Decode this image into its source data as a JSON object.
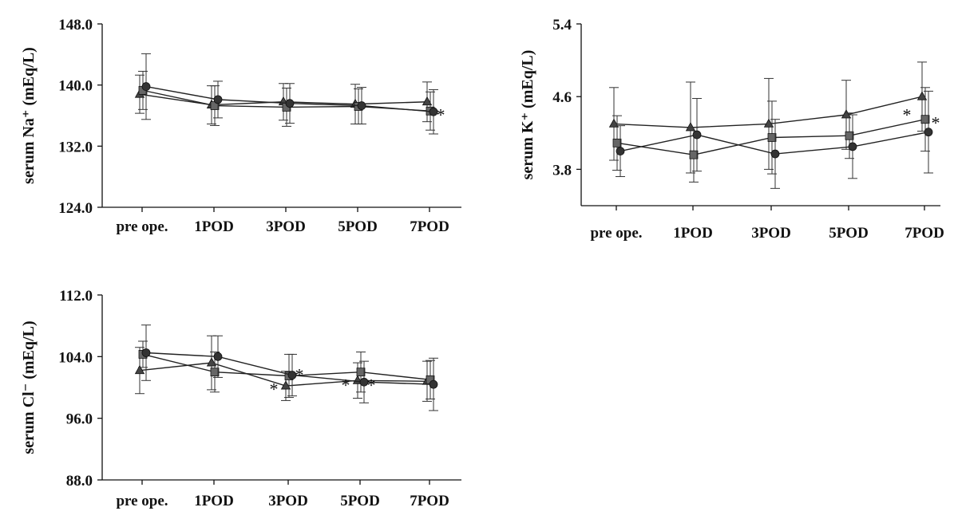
{
  "chart_data": [
    {
      "type": "line",
      "ylabel": "serum Na⁺ (mEq/L)",
      "categories": [
        "pre ope.",
        "1POD",
        "3POD",
        "5POD",
        "7POD"
      ],
      "ylim": [
        124.0,
        148.0
      ],
      "yticks": [
        "124.0",
        "132.0",
        "140.0",
        "148.0"
      ],
      "series": [
        {
          "marker": "triangle",
          "values": [
            138.8,
            137.4,
            137.8,
            137.5,
            137.8
          ],
          "err": [
            2.5,
            2.5,
            2.4,
            2.6,
            2.6
          ]
        },
        {
          "marker": "square",
          "values": [
            139.3,
            137.3,
            137.1,
            137.2,
            136.6
          ],
          "err": [
            2.5,
            2.6,
            2.5,
            2.3,
            2.5
          ]
        },
        {
          "marker": "circle",
          "values": [
            139.8,
            138.1,
            137.6,
            137.3,
            136.5
          ],
          "err": [
            4.3,
            2.4,
            2.6,
            2.4,
            2.9
          ]
        }
      ],
      "annotations": [
        {
          "category": "7POD",
          "text": "*"
        }
      ]
    },
    {
      "type": "line",
      "ylabel": "serum K⁺ (mEq/L)",
      "categories": [
        "pre ope.",
        "1POD",
        "3POD",
        "5POD",
        "7POD"
      ],
      "ylim": [
        3.4,
        5.4
      ],
      "yticks": [
        "3.8",
        "4.6",
        "5.4"
      ],
      "series": [
        {
          "marker": "triangle",
          "values": [
            4.3,
            4.26,
            4.3,
            4.4,
            4.6
          ],
          "err": [
            0.4,
            0.5,
            0.5,
            0.38,
            0.38
          ]
        },
        {
          "marker": "square",
          "values": [
            4.09,
            3.96,
            4.15,
            4.17,
            4.35
          ],
          "err": [
            0.3,
            0.3,
            0.4,
            0.25,
            0.35
          ]
        },
        {
          "marker": "circle",
          "values": [
            4.0,
            4.18,
            3.97,
            4.05,
            4.21
          ],
          "err": [
            0.28,
            0.4,
            0.38,
            0.35,
            0.45
          ]
        }
      ],
      "annotations": [
        {
          "category": "7POD",
          "text": "*"
        },
        {
          "category": "7POD",
          "text": "*"
        }
      ]
    },
    {
      "type": "line",
      "ylabel": "serum Cl⁻ (mEq/L)",
      "categories": [
        "pre ope.",
        "1POD",
        "3POD",
        "5POD",
        "7POD"
      ],
      "ylim": [
        88.0,
        112.0
      ],
      "yticks": [
        "88.0",
        "96.0",
        "104.0",
        "112.0"
      ],
      "series": [
        {
          "marker": "triangle",
          "values": [
            102.2,
            103.2,
            100.2,
            100.9,
            100.8
          ],
          "err": [
            3.0,
            3.5,
            1.9,
            2.3,
            2.6
          ]
        },
        {
          "marker": "square",
          "values": [
            104.3,
            102.0,
            101.5,
            102.0,
            101.0
          ],
          "err": [
            1.7,
            2.6,
            2.8,
            2.6,
            2.5
          ]
        },
        {
          "marker": "circle",
          "values": [
            104.5,
            104.0,
            101.6,
            100.7,
            100.4
          ],
          "err": [
            3.6,
            2.7,
            2.7,
            2.7,
            3.4
          ]
        }
      ],
      "annotations": [
        {
          "category": "3POD",
          "text": "*"
        },
        {
          "category": "3POD",
          "text": "*"
        },
        {
          "category": "5POD",
          "text": "*"
        },
        {
          "category": "5POD",
          "text": "*"
        }
      ]
    }
  ]
}
